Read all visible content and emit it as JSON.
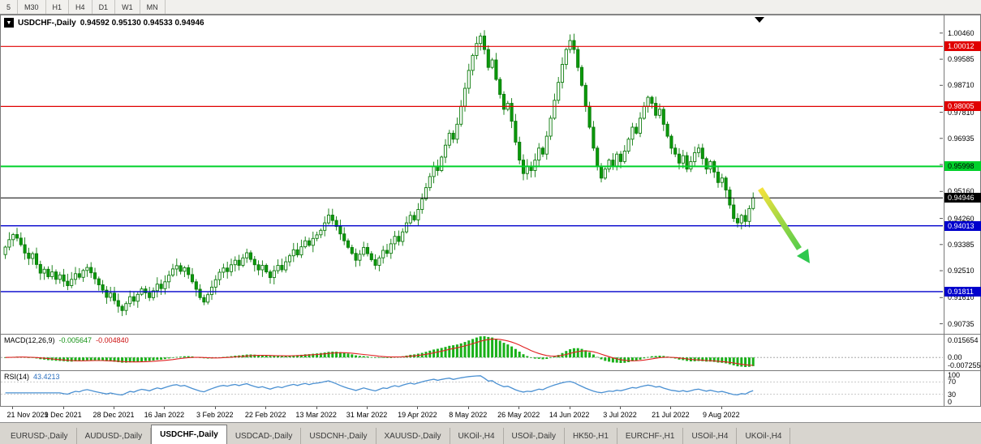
{
  "toolbar": {
    "timeframes": [
      "5",
      "M30",
      "H1",
      "H4",
      "D1",
      "W1",
      "MN"
    ]
  },
  "chart": {
    "symbol_title": "USDCHF-,Daily",
    "ohlc_title": "0.94592 0.95130 0.94533 0.94946"
  },
  "chart_data": {
    "type": "candlestick",
    "symbol": "USDCHF",
    "timeframe": "Daily",
    "last_ohlc": {
      "open": 0.94592,
      "high": 0.9513,
      "low": 0.94533,
      "close": 0.94946
    },
    "price_range": {
      "min": 0.904,
      "max": 1.0105
    },
    "price_axis_labels": [
      "1.00460",
      "0.99585",
      "0.98710",
      "0.97810",
      "0.96935",
      "0.96060",
      "0.95160",
      "0.94260",
      "0.93385",
      "0.92510",
      "0.91610",
      "0.90735"
    ],
    "hlines": [
      {
        "price": 1.00012,
        "label": "1.00012",
        "color": "#e00000",
        "text": "#ffffff",
        "width": 1.2
      },
      {
        "price": 0.98005,
        "label": "0.98005",
        "color": "#e00000",
        "text": "#ffffff",
        "width": 1.2
      },
      {
        "price": 0.95998,
        "label": "0.95998",
        "color": "#00d02a",
        "text": "#000000",
        "width": 2
      },
      {
        "price": 0.94946,
        "label": "0.94946",
        "color": "#000000",
        "text": "#ffffff",
        "width": 1
      },
      {
        "price": 0.94013,
        "label": "0.94013",
        "color": "#0000cc",
        "text": "#ffffff",
        "width": 1.4
      },
      {
        "price": 0.91811,
        "label": "0.91811",
        "color": "#0000cc",
        "text": "#ffffff",
        "width": 1.4
      }
    ],
    "x_axis": {
      "labels": [
        "21 Nov 2021",
        "9 Dec 2021",
        "28 Dec 2021",
        "16 Jan 2022",
        "3 Feb 2022",
        "22 Feb 2022",
        "13 Mar 2022",
        "31 Mar 2022",
        "19 Apr 2022",
        "8 May 2022",
        "26 May 2022",
        "14 Jun 2022",
        "3 Jul 2022",
        "21 Jul 2022",
        "9 Aug 2022"
      ],
      "indices": [
        2,
        15,
        28,
        41,
        54,
        67,
        80,
        93,
        106,
        119,
        132,
        145,
        158,
        171,
        184
      ]
    },
    "closes": [
      0.933,
      0.9355,
      0.9372,
      0.936,
      0.9338,
      0.931,
      0.9292,
      0.9308,
      0.9272,
      0.9243,
      0.9256,
      0.9231,
      0.9247,
      0.9222,
      0.9237,
      0.9216,
      0.9201,
      0.9222,
      0.9241,
      0.9229,
      0.9252,
      0.9262,
      0.9244,
      0.9224,
      0.9204,
      0.9186,
      0.9162,
      0.9176,
      0.9151,
      0.9132,
      0.9118,
      0.9141,
      0.9164,
      0.9149,
      0.9172,
      0.919,
      0.9177,
      0.9161,
      0.9184,
      0.9206,
      0.9191,
      0.9214,
      0.9236,
      0.9257,
      0.9268,
      0.9249,
      0.9261,
      0.9238,
      0.9214,
      0.9189,
      0.9161,
      0.9146,
      0.9171,
      0.9196,
      0.9221,
      0.9246,
      0.926,
      0.9248,
      0.9271,
      0.9286,
      0.9269,
      0.9294,
      0.9311,
      0.9289,
      0.9271,
      0.9254,
      0.9269,
      0.9247,
      0.9228,
      0.9251,
      0.9269,
      0.9254,
      0.9281,
      0.9301,
      0.9321,
      0.9304,
      0.9331,
      0.9351,
      0.9336,
      0.9359,
      0.9371,
      0.9386,
      0.9411,
      0.9437,
      0.9419,
      0.9399,
      0.9374,
      0.9351,
      0.9329,
      0.9309,
      0.9286,
      0.9306,
      0.9329,
      0.9308,
      0.9288,
      0.9269,
      0.9294,
      0.9319,
      0.9309,
      0.9341,
      0.9366,
      0.9349,
      0.9381,
      0.9411,
      0.9436,
      0.9421,
      0.9456,
      0.9491,
      0.9529,
      0.9566,
      0.9601,
      0.9586,
      0.9631,
      0.9671,
      0.9711,
      0.9691,
      0.9741,
      0.9801,
      0.9861,
      0.9921,
      0.9971,
      1.0011,
      1.0036,
      0.9991,
      0.9931,
      0.9956,
      0.9891,
      0.9841,
      0.9791,
      0.9811,
      0.9751,
      0.9681,
      0.9621,
      0.9576,
      0.9601,
      0.9586,
      0.9621,
      0.9661,
      0.9641,
      0.9701,
      0.9761,
      0.9821,
      0.9881,
      0.9941,
      0.9991,
      1.0021,
      0.9991,
      0.9931,
      0.9871,
      0.9801,
      0.9731,
      0.9661,
      0.9601,
      0.9561,
      0.9591,
      0.9621,
      0.9601,
      0.9641,
      0.9616,
      0.9651,
      0.9691,
      0.9731,
      0.9711,
      0.9761,
      0.9801,
      0.9831,
      0.9811,
      0.9771,
      0.9791,
      0.9741,
      0.9701,
      0.9661,
      0.9641,
      0.9611,
      0.9636,
      0.9591,
      0.9616,
      0.9646,
      0.9661,
      0.9626,
      0.9591,
      0.9616,
      0.9581,
      0.9546,
      0.9561,
      0.9521,
      0.9471,
      0.9426,
      0.9411,
      0.9436,
      0.9416,
      0.9459,
      0.94946
    ],
    "indicators": {
      "macd": {
        "name": "MACD(12,26,9)",
        "value_main": "-0.005647",
        "value_signal": "-0.004840",
        "axis_top": "0.015654",
        "axis_zero": "0.00",
        "axis_bottom": "-0.007255"
      },
      "rsi": {
        "name": "RSI(14)",
        "value": "43.4213",
        "axis": [
          "100",
          "70",
          "30",
          "0"
        ],
        "levels": [
          70,
          30
        ]
      }
    },
    "colors": {
      "bull_fill": "#ffffff",
      "bear_fill": "#0a9b0a",
      "candle_border": "#0a7a0a",
      "macd_hist": "#18b018",
      "macd_signal": "#e02020",
      "rsi_line": "#4a90d2",
      "arrow_start": "#f5e23c",
      "arrow_end": "#2ec84e"
    }
  },
  "tabs": {
    "active_index": 2,
    "items": [
      "EURUSD-,Daily",
      "AUDUSD-,Daily",
      "USDCHF-,Daily",
      "USDCAD-,Daily",
      "USDCNH-,Daily",
      "XAUUSD-,Daily",
      "UKOil-,H4",
      "USOil-,Daily",
      "HK50-,H1",
      "EURCHF-,H1",
      "USOil-,H4",
      "UKOil-,H4"
    ]
  }
}
